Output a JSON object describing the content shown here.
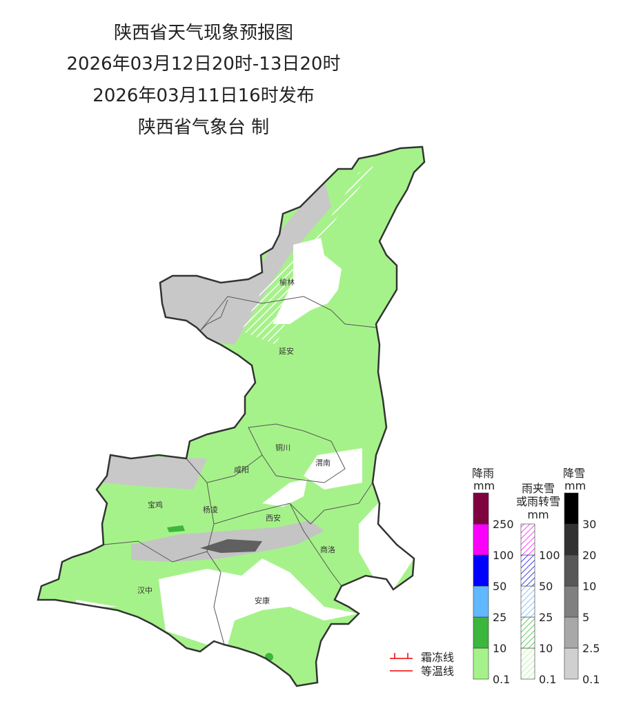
{
  "header": {
    "lines": [
      "陕西省天气现象预报图",
      "2026年03月12日20时-13日20时",
      "2026年03月11日16时发布",
      "陕西省气象台 制"
    ]
  },
  "cities": [
    {
      "name": "榆林"
    },
    {
      "name": "延安"
    },
    {
      "name": "铜川"
    },
    {
      "name": "渭南"
    },
    {
      "name": "咸阳"
    },
    {
      "name": "宝鸡"
    },
    {
      "name": "杨凌"
    },
    {
      "name": "西安"
    },
    {
      "name": "商洛"
    },
    {
      "name": "汉中"
    },
    {
      "name": "安康"
    }
  ],
  "legend": {
    "rain": {
      "title": "降雨",
      "unit": "mm",
      "ticks": [
        0.1,
        10,
        25,
        50,
        100,
        250
      ],
      "colors": [
        "#a6f28a",
        "#3cb63c",
        "#62b8ff",
        "#0000fe",
        "#fb00fb",
        "#7e0140"
      ]
    },
    "sleet": {
      "title": [
        "雨夹雪",
        "或雨转雪"
      ],
      "unit": "mm",
      "ticks": [
        0.1,
        10,
        25,
        50,
        100
      ],
      "colors": [
        "#a6f28a",
        "#3cb63c",
        "#62b8ff",
        "#0000fe",
        "#fb00fb"
      ]
    },
    "snow": {
      "title": "降雪",
      "unit": "mm",
      "ticks": [
        0.1,
        2.5,
        5,
        10,
        20,
        30
      ],
      "colors": [
        "#d0d0d0",
        "#a8a8a8",
        "#808080",
        "#585858",
        "#323232",
        "#000000"
      ]
    },
    "lines": [
      "霜冻线",
      "等温线"
    ]
  }
}
